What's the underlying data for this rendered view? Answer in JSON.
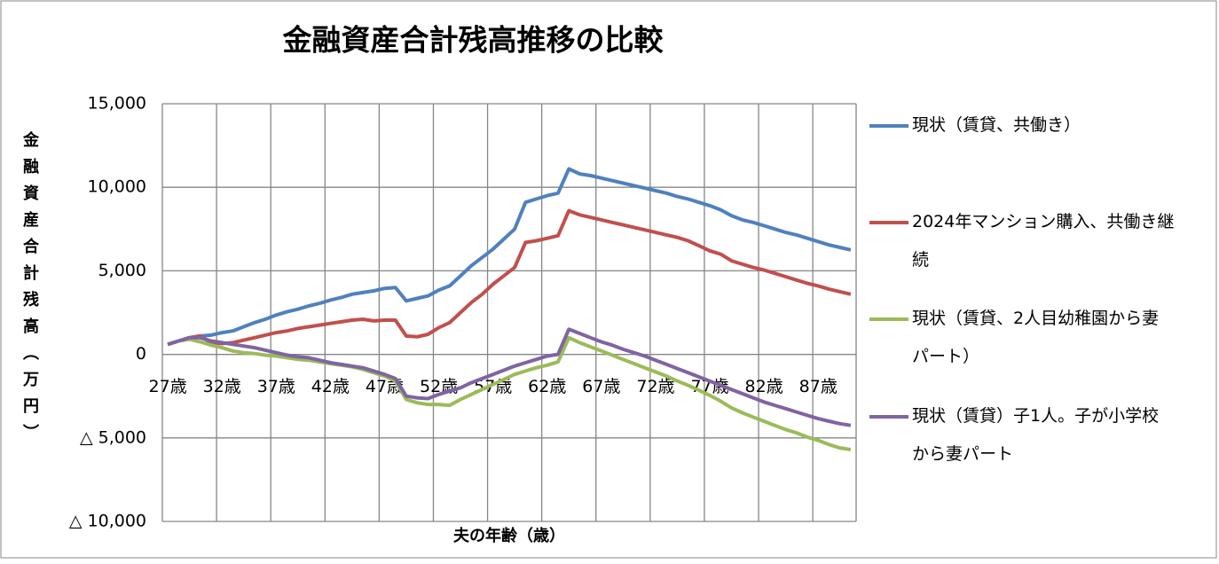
{
  "chart_data": {
    "type": "line",
    "title": "金融資産合計残高推移の比較",
    "x_label": "夫の年齢（歳）",
    "y_label": "金融資産合計残高（万円）",
    "categories": [
      "27歳",
      null,
      null,
      null,
      null,
      "32歳",
      null,
      null,
      null,
      null,
      "37歳",
      null,
      null,
      null,
      null,
      "42歳",
      null,
      null,
      null,
      null,
      "47歳",
      null,
      null,
      null,
      null,
      "52歳",
      null,
      null,
      null,
      null,
      "57歳",
      null,
      null,
      null,
      null,
      "62歳",
      null,
      null,
      null,
      null,
      "67歳",
      null,
      null,
      null,
      null,
      "72歳",
      null,
      null,
      null,
      null,
      "77歳",
      null,
      null,
      null,
      null,
      "82歳",
      null,
      null,
      null,
      null,
      "87歳",
      null,
      null,
      null
    ],
    "series": [
      {
        "name": "現状（賃貸、共働き）",
        "color": "#4f81bd",
        "values": [
          600,
          800,
          1000,
          1100,
          1150,
          1300,
          1400,
          1650,
          1900,
          2100,
          2350,
          2550,
          2700,
          2900,
          3050,
          3250,
          3400,
          3600,
          3700,
          3800,
          3950,
          4000,
          3200,
          3350,
          3500,
          3850,
          4100,
          4700,
          5300,
          5800,
          6300,
          6900,
          7500,
          9100,
          9300,
          9500,
          9650,
          11100,
          10800,
          10700,
          10550,
          10400,
          10250,
          10100,
          9950,
          9800,
          9650,
          9450,
          9300,
          9100,
          8900,
          8650,
          8300,
          8050,
          7900,
          7700,
          7500,
          7300,
          7150,
          6950,
          6750,
          6550,
          6400,
          6250
        ]
      },
      {
        "name": "2024年マンション購入、共働き継続",
        "color": "#c0504d",
        "values": [
          600,
          800,
          1000,
          1100,
          700,
          650,
          700,
          850,
          1000,
          1150,
          1300,
          1400,
          1550,
          1650,
          1750,
          1850,
          1950,
          2050,
          2100,
          2000,
          2050,
          2050,
          1100,
          1050,
          1200,
          1600,
          1900,
          2500,
          3100,
          3600,
          4200,
          4700,
          5200,
          6700,
          6800,
          6950,
          7100,
          8600,
          8350,
          8200,
          8050,
          7900,
          7750,
          7600,
          7450,
          7300,
          7150,
          7000,
          6800,
          6500,
          6200,
          6000,
          5600,
          5400,
          5200,
          5050,
          4850,
          4650,
          4450,
          4250,
          4100,
          3900,
          3750,
          3600
        ]
      },
      {
        "name": "現状（賃貸、2人目幼稚園から妻パート）",
        "color": "#9bbb59",
        "values": [
          600,
          800,
          900,
          750,
          550,
          400,
          200,
          100,
          50,
          -50,
          -100,
          -200,
          -300,
          -350,
          -450,
          -550,
          -650,
          -750,
          -900,
          -1100,
          -1300,
          -1600,
          -2700,
          -2900,
          -3000,
          -3000,
          -3050,
          -2700,
          -2400,
          -2100,
          -1800,
          -1500,
          -1200,
          -1000,
          -800,
          -650,
          -450,
          1000,
          700,
          450,
          200,
          -50,
          -300,
          -550,
          -800,
          -1050,
          -1300,
          -1600,
          -1850,
          -2150,
          -2450,
          -2800,
          -3200,
          -3500,
          -3750,
          -4000,
          -4250,
          -4500,
          -4700,
          -4950,
          -5150,
          -5400,
          -5600,
          -5700
        ]
      },
      {
        "name": "現状（賃貸）子1人。子が小学校から妻パート",
        "color": "#8064a2",
        "values": [
          600,
          800,
          1000,
          1000,
          800,
          700,
          600,
          500,
          400,
          250,
          100,
          -50,
          -150,
          -200,
          -350,
          -500,
          -600,
          -700,
          -800,
          -1000,
          -1200,
          -1450,
          -2500,
          -2600,
          -2650,
          -2400,
          -2200,
          -2000,
          -1700,
          -1450,
          -1200,
          -950,
          -700,
          -500,
          -300,
          -100,
          0,
          1500,
          1250,
          1000,
          750,
          550,
          300,
          100,
          -100,
          -350,
          -600,
          -850,
          -1100,
          -1350,
          -1600,
          -1850,
          -2100,
          -2350,
          -2600,
          -2850,
          -3050,
          -3250,
          -3450,
          -3650,
          -3850,
          -4000,
          -4150,
          -4250
        ]
      }
    ],
    "ylim": [
      -10000,
      15000
    ],
    "yticks": [
      {
        "value": -10000,
        "label": "△ 10,000"
      },
      {
        "value": -5000,
        "label": "△ 5,000"
      },
      0,
      {
        "value": 5000,
        "label": "5,000"
      },
      {
        "value": 10000,
        "label": "10,000"
      },
      {
        "value": 15000,
        "label": "15,000"
      }
    ],
    "grid": true,
    "legend": "right"
  }
}
